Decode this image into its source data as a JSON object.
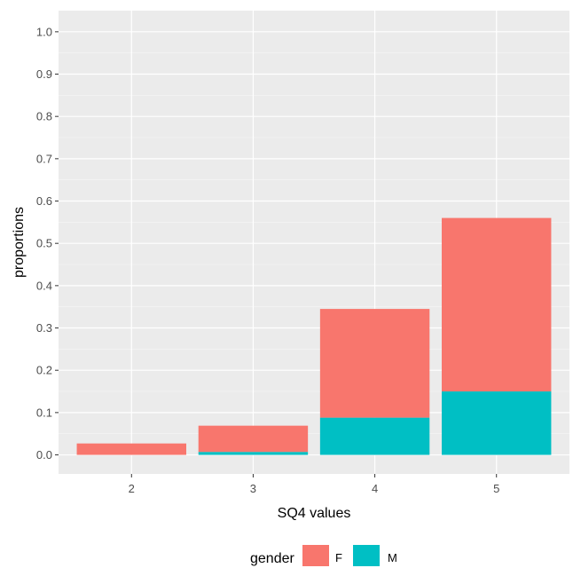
{
  "chart_data": {
    "type": "bar",
    "stacked": true,
    "categories": [
      "2",
      "3",
      "4",
      "5"
    ],
    "series": [
      {
        "name": "F",
        "color": "#F8766D",
        "values": [
          0.027,
          0.062,
          0.257,
          0.41
        ]
      },
      {
        "name": "M",
        "color": "#00BFC4",
        "values": [
          0.0,
          0.007,
          0.088,
          0.15
        ]
      }
    ],
    "xlabel": "SQ4 values",
    "ylabel": "proportions",
    "ylim": [
      -0.045,
      1.05
    ],
    "yticks": [
      "0.0",
      "0.1",
      "0.2",
      "0.3",
      "0.4",
      "0.5",
      "0.6",
      "0.7",
      "0.8",
      "0.9",
      "1.0"
    ],
    "grid": true,
    "legend": {
      "title": "gender",
      "position": "bottom",
      "items": [
        "F",
        "M"
      ]
    }
  }
}
